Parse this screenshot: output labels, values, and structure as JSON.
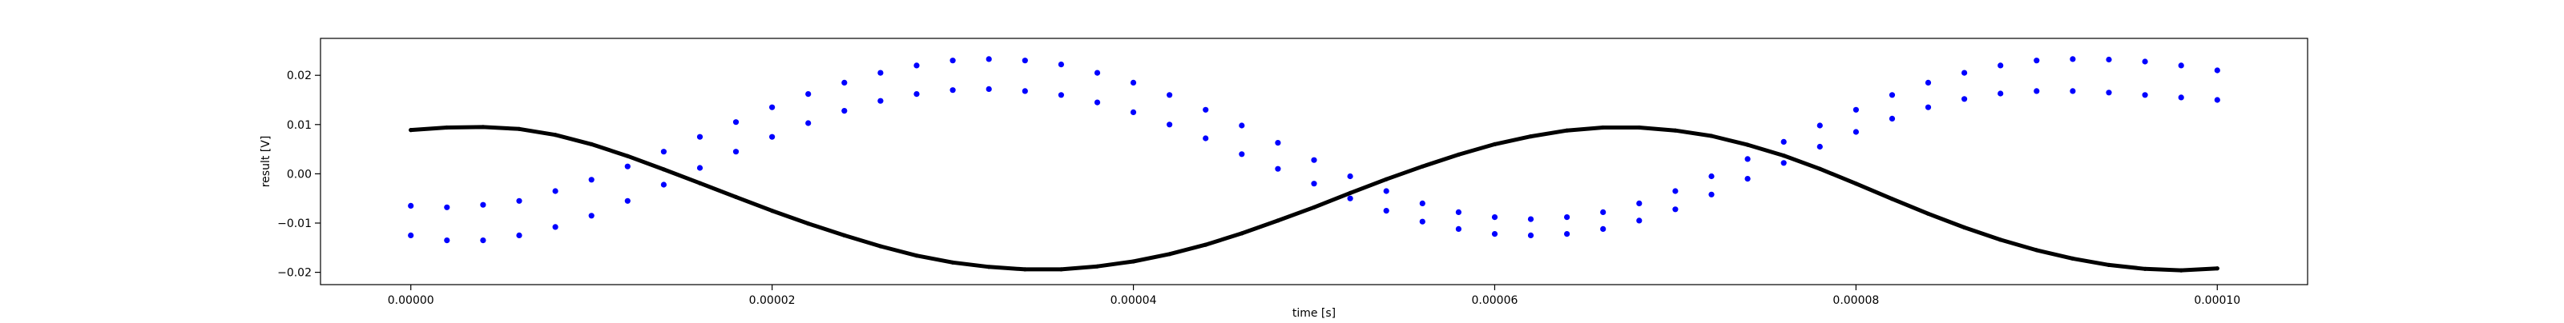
{
  "chart_data": {
    "type": "scatter",
    "title": "",
    "xlabel": "time [s]",
    "ylabel": "result [V]",
    "xlim": [
      -5e-06,
      0.000105
    ],
    "ylim": [
      -0.0225,
      0.0275
    ],
    "x_ticks": [
      0.0,
      2e-05,
      4e-05,
      6e-05,
      8e-05,
      0.0001
    ],
    "x_tick_labels": [
      "0.00000",
      "0.00002",
      "0.00004",
      "0.00006",
      "0.00008",
      "0.00010"
    ],
    "y_ticks": [
      -0.02,
      -0.01,
      0.0,
      0.01,
      0.02
    ],
    "y_tick_labels": [
      "−0.02",
      "−0.01",
      "0.00",
      "0.01",
      "0.02"
    ],
    "grid": false,
    "legend": "none",
    "series": [
      {
        "marker": "dense-dots",
        "color": "#000000",
        "x": [
          0.0,
          2e-06,
          4e-06,
          6e-06,
          8e-06,
          1e-05,
          1.2e-05,
          1.4e-05,
          1.6e-05,
          1.8e-05,
          2e-05,
          2.2e-05,
          2.4e-05,
          2.6e-05,
          2.8e-05,
          3e-05,
          3.2e-05,
          3.4e-05,
          3.6e-05,
          3.8e-05,
          4e-05,
          4.2e-05,
          4.4e-05,
          4.6e-05,
          4.8e-05,
          5e-05,
          5.2e-05,
          5.4e-05,
          5.6e-05,
          5.8e-05,
          6e-05,
          6.2e-05,
          6.4e-05,
          6.6e-05,
          6.8e-05,
          7e-05,
          7.2e-05,
          7.4e-05,
          7.6e-05,
          7.8e-05,
          8e-05,
          8.2e-05,
          8.4e-05,
          8.6e-05,
          8.8e-05,
          9e-05,
          9.2e-05,
          9.4e-05,
          9.6e-05,
          9.8e-05,
          0.0001
        ],
        "y": [
          0.0089,
          0.0094,
          0.0095,
          0.0091,
          0.0079,
          0.006,
          0.0036,
          0.0009,
          -0.0019,
          -0.0047,
          -0.0075,
          -0.0101,
          -0.0125,
          -0.0147,
          -0.0166,
          -0.018,
          -0.0189,
          -0.0194,
          -0.0194,
          -0.0188,
          -0.0178,
          -0.0163,
          -0.0144,
          -0.0121,
          -0.0095,
          -0.0068,
          -0.0039,
          -0.0011,
          0.0015,
          0.0039,
          0.006,
          0.0076,
          0.0088,
          0.0094,
          0.0094,
          0.0088,
          0.0077,
          0.0059,
          0.0037,
          0.001,
          -0.002,
          -0.0051,
          -0.0081,
          -0.0109,
          -0.0134,
          -0.0155,
          -0.0172,
          -0.0185,
          -0.0193,
          -0.0196,
          -0.0192
        ]
      },
      {
        "marker": "o",
        "color": "#0000ff",
        "x": [
          0.0,
          2e-06,
          4e-06,
          6e-06,
          8e-06,
          1e-05,
          1.2e-05,
          1.4e-05,
          1.6e-05,
          1.8e-05,
          2e-05,
          2.2e-05,
          2.4e-05,
          2.6e-05,
          2.8e-05,
          3e-05,
          3.2e-05,
          3.4e-05,
          3.6e-05,
          3.8e-05,
          4e-05,
          4.2e-05,
          4.4e-05,
          4.6e-05,
          4.8e-05,
          5e-05,
          5.2e-05,
          5.4e-05,
          5.6e-05,
          5.8e-05,
          6e-05,
          6.2e-05,
          6.4e-05,
          6.6e-05,
          6.8e-05,
          7e-05,
          7.2e-05,
          7.4e-05,
          7.6e-05,
          7.8e-05,
          8e-05,
          8.2e-05,
          8.4e-05,
          8.6e-05,
          8.8e-05,
          9e-05,
          9.2e-05,
          9.4e-05,
          9.6e-05,
          9.8e-05,
          0.0001
        ],
        "y": [
          -0.0065,
          -0.0068,
          -0.0063,
          -0.0055,
          -0.0035,
          -0.0012,
          0.0015,
          0.0045,
          0.0075,
          0.0105,
          0.0135,
          0.0162,
          0.0185,
          0.0205,
          0.022,
          0.023,
          0.0233,
          0.023,
          0.0222,
          0.0205,
          0.0185,
          0.016,
          0.013,
          0.0098,
          0.0063,
          0.0028,
          -0.0005,
          -0.0035,
          -0.006,
          -0.0078,
          -0.0088,
          -0.0092,
          -0.0088,
          -0.0078,
          -0.006,
          -0.0035,
          -0.0005,
          0.003,
          0.0065,
          0.0098,
          0.013,
          0.016,
          0.0185,
          0.0205,
          0.022,
          0.023,
          0.0233,
          0.0232,
          0.0228,
          0.022,
          0.021
        ]
      },
      {
        "marker": "o",
        "color": "#0000ff",
        "x": [
          0.0,
          2e-06,
          4e-06,
          6e-06,
          8e-06,
          1e-05,
          1.2e-05,
          1.4e-05,
          1.6e-05,
          1.8e-05,
          2e-05,
          2.2e-05,
          2.4e-05,
          2.6e-05,
          2.8e-05,
          3e-05,
          3.2e-05,
          3.4e-05,
          3.6e-05,
          3.8e-05,
          4e-05,
          4.2e-05,
          4.4e-05,
          4.6e-05,
          4.8e-05,
          5e-05,
          5.2e-05,
          5.4e-05,
          5.6e-05,
          5.8e-05,
          6e-05,
          6.2e-05,
          6.4e-05,
          6.6e-05,
          6.8e-05,
          7e-05,
          7.2e-05,
          7.4e-05,
          7.6e-05,
          7.8e-05,
          8e-05,
          8.2e-05,
          8.4e-05,
          8.6e-05,
          8.8e-05,
          9e-05,
          9.2e-05,
          9.4e-05,
          9.6e-05,
          9.8e-05,
          0.0001
        ],
        "y": [
          -0.0125,
          -0.0135,
          -0.0135,
          -0.0125,
          -0.0108,
          -0.0085,
          -0.0055,
          -0.0022,
          0.0012,
          0.0045,
          0.0075,
          0.0103,
          0.0128,
          0.0148,
          0.0162,
          0.017,
          0.0172,
          0.0168,
          0.016,
          0.0145,
          0.0125,
          0.01,
          0.0072,
          0.004,
          0.001,
          -0.002,
          -0.005,
          -0.0075,
          -0.0097,
          -0.0112,
          -0.0122,
          -0.0125,
          -0.0122,
          -0.0112,
          -0.0095,
          -0.0072,
          -0.0042,
          -0.001,
          0.0022,
          0.0055,
          0.0085,
          0.0112,
          0.0135,
          0.0152,
          0.0163,
          0.0168,
          0.0168,
          0.0165,
          0.016,
          0.0155,
          0.015
        ]
      }
    ]
  }
}
